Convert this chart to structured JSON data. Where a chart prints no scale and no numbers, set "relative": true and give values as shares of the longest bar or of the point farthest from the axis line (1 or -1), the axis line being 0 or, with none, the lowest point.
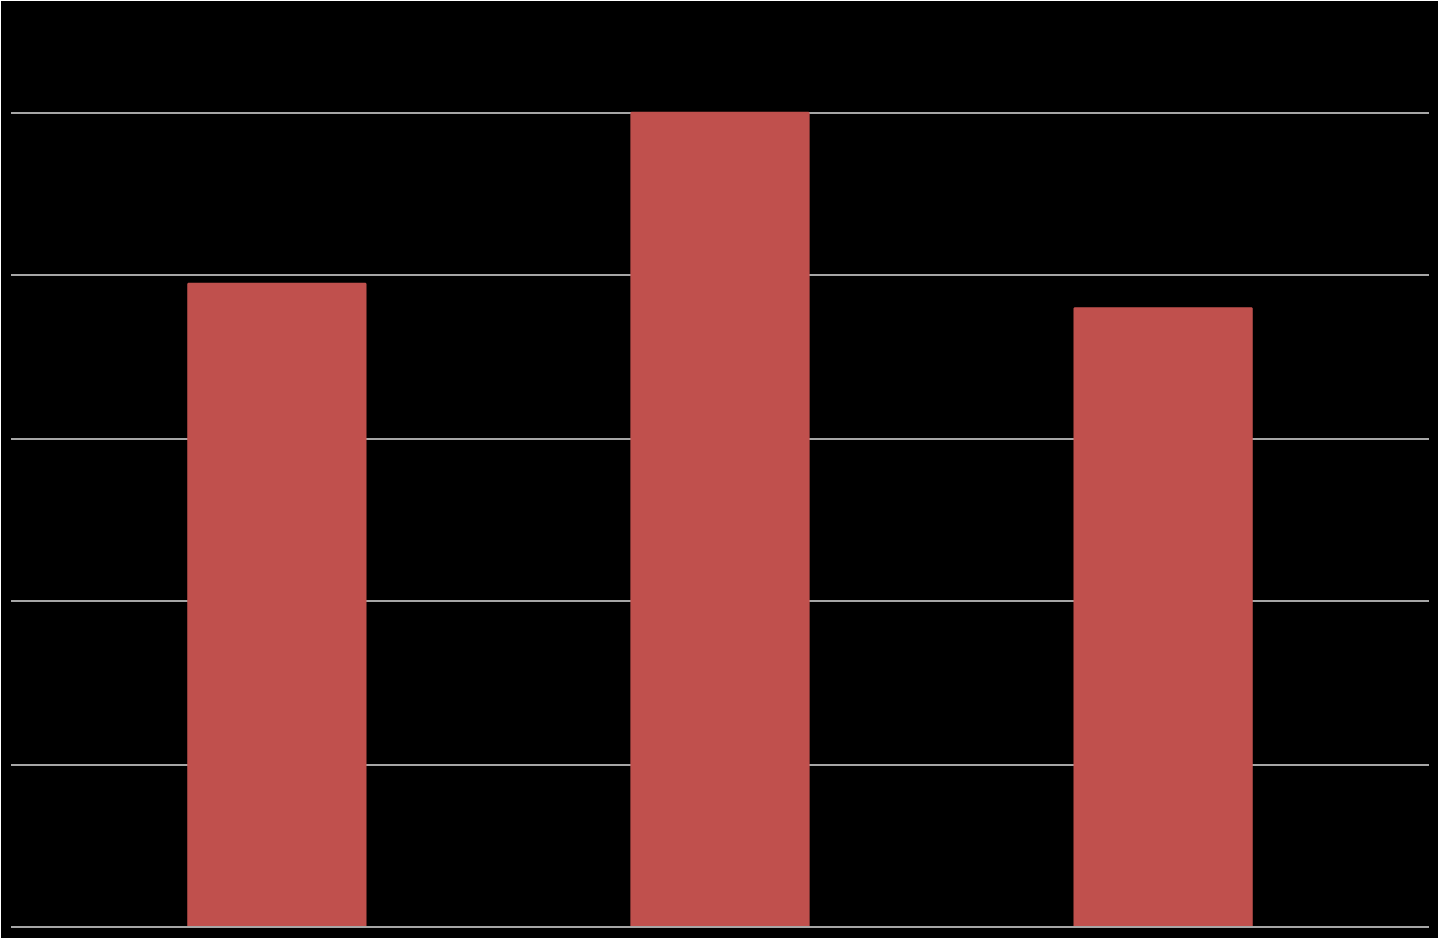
{
  "chart_data": {
    "type": "bar",
    "relative": true,
    "categories": [
      null,
      null,
      null
    ],
    "values": [
      0.79,
      1,
      0.76
    ],
    "color": "#c0504d",
    "grid": "y"
  }
}
